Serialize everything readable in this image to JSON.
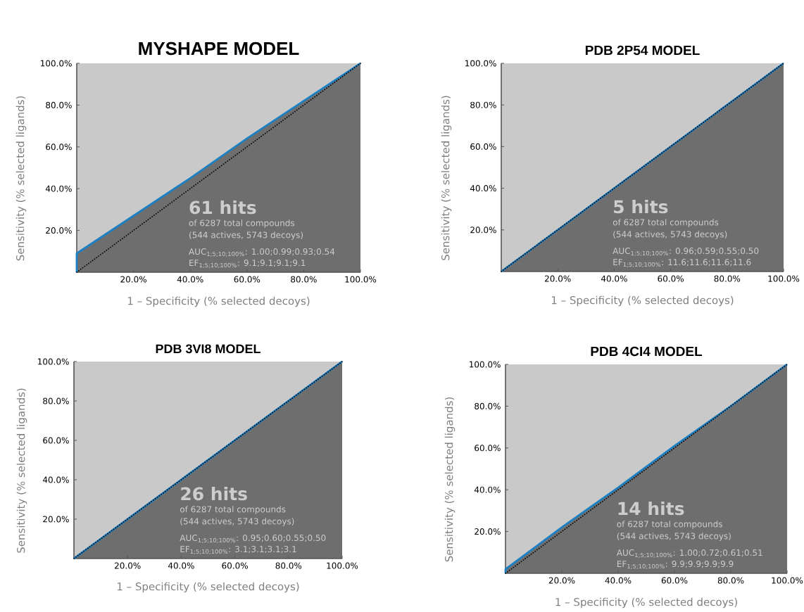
{
  "chart_data": [
    {
      "type": "line",
      "title": "MYSHAPE MODEL",
      "xlabel": "1 – Specificity (% selected decoys)",
      "ylabel": "Sensitivity (% selected ligands)",
      "xlim": [
        0,
        100
      ],
      "ylim": [
        0,
        100
      ],
      "xticks": [
        {
          "value": 20,
          "label": "20.0%"
        },
        {
          "value": 40,
          "label": "40.0%"
        },
        {
          "value": 60,
          "label": "60.0%"
        },
        {
          "value": 80,
          "label": "80.0%"
        },
        {
          "value": 100,
          "label": "100.0%"
        }
      ],
      "yticks": [
        {
          "value": 20,
          "label": "20.0%"
        },
        {
          "value": 40,
          "label": "40.0%"
        },
        {
          "value": 60,
          "label": "60.0%"
        },
        {
          "value": 80,
          "label": "80.0%"
        },
        {
          "value": 100,
          "label": "100.0%"
        }
      ],
      "series": [
        {
          "color": "#1b80c3",
          "x": [
            0,
            0,
            20,
            40,
            60,
            80,
            100
          ],
          "values": [
            0,
            9,
            27,
            45,
            64,
            82,
            100
          ]
        },
        {
          "color": "#000000",
          "line_style": "dotted",
          "x": [
            0,
            100
          ],
          "values": [
            0,
            100
          ]
        }
      ],
      "annotations": [
        "61 hits",
        "of 6287 total compounds",
        "(544 actives, 5743 decoys)",
        "AUC$_{1;5;10;100%}$: 1.00;0.99;0.93;0.54",
        "EF$_{1;5;10;100%}$: 9.1;9.1;9.1;9.1"
      ]
    },
    {
      "type": "line",
      "title": "PDB 2P54 MODEL",
      "xlabel": "1 – Specificity (% selected decoys)",
      "ylabel": "Sensitivity (% selected ligands)",
      "xlim": [
        0,
        100
      ],
      "ylim": [
        0,
        100
      ],
      "xticks": [
        {
          "value": 20,
          "label": "20.0%"
        },
        {
          "value": 40,
          "label": "40.0%"
        },
        {
          "value": 60,
          "label": "60.0%"
        },
        {
          "value": 80,
          "label": "80.0%"
        },
        {
          "value": 100,
          "label": "100.0%"
        }
      ],
      "yticks": [
        {
          "value": 20,
          "label": "20.0%"
        },
        {
          "value": 40,
          "label": "40.0%"
        },
        {
          "value": 60,
          "label": "60.0%"
        },
        {
          "value": 80,
          "label": "80.0%"
        },
        {
          "value": 100,
          "label": "100.0%"
        }
      ],
      "series": [
        {
          "color": "#1b80c3",
          "x": [
            0,
            20,
            40,
            60,
            80,
            100
          ],
          "values": [
            0,
            20,
            40,
            60,
            80,
            100
          ]
        },
        {
          "color": "#000000",
          "line_style": "dotted",
          "x": [
            0,
            100
          ],
          "values": [
            0,
            100
          ]
        }
      ],
      "annotations": [
        "5 hits",
        "of 6287 total compounds",
        "(544 actives, 5743 decoys)",
        "AUC$_{1;5;10;100%}$: 0.96;0.59;0.55;0.50",
        "EF$_{1;5;10;100%}$: 11.6;11.6;11.6;11.6"
      ]
    },
    {
      "type": "line",
      "title": "PDB 3VI8 MODEL",
      "xlabel": "1 – Specificity (% selected decoys)",
      "ylabel": "Sensitivity (% selected ligands)",
      "xlim": [
        0,
        100
      ],
      "ylim": [
        0,
        100
      ],
      "xticks": [
        {
          "value": 20,
          "label": "20.0%"
        },
        {
          "value": 40,
          "label": "40.0%"
        },
        {
          "value": 60,
          "label": "60.0%"
        },
        {
          "value": 80,
          "label": "80.0%"
        },
        {
          "value": 100,
          "label": "100.0%"
        }
      ],
      "yticks": [
        {
          "value": 20,
          "label": "20.0%"
        },
        {
          "value": 40,
          "label": "40.0%"
        },
        {
          "value": 60,
          "label": "60.0%"
        },
        {
          "value": 80,
          "label": "80.0%"
        },
        {
          "value": 100,
          "label": "100.0%"
        }
      ],
      "series": [
        {
          "color": "#1b80c3",
          "x": [
            0,
            20,
            40,
            60,
            80,
            100
          ],
          "values": [
            0,
            20,
            40,
            60,
            80,
            100
          ]
        },
        {
          "color": "#000000",
          "line_style": "dotted",
          "x": [
            0,
            100
          ],
          "values": [
            0,
            100
          ]
        }
      ],
      "annotations": [
        "26 hits",
        "of 6287 total compounds",
        "(544 actives, 5743 decoys)",
        "AUC$_{1;5;10;100%}$: 0.95;0.60;0.55;0.50",
        "EF$_{1;5;10;100%}$: 3.1;3.1;3.1;3.1"
      ]
    },
    {
      "type": "line",
      "title": "PDB 4CI4 MODEL",
      "xlabel": "1 – Specificity (% selected decoys)",
      "ylabel": "Sensitivity (% selected ligands)",
      "xlim": [
        0,
        100
      ],
      "ylim": [
        0,
        100
      ],
      "xticks": [
        {
          "value": 20,
          "label": "20.0%"
        },
        {
          "value": 40,
          "label": "40.0%"
        },
        {
          "value": 60,
          "label": "60.0%"
        },
        {
          "value": 80,
          "label": "80.0%"
        },
        {
          "value": 100,
          "label": "100.0%"
        }
      ],
      "yticks": [
        {
          "value": 20,
          "label": "20.0%"
        },
        {
          "value": 40,
          "label": "40.0%"
        },
        {
          "value": 60,
          "label": "60.0%"
        },
        {
          "value": 80,
          "label": "80.0%"
        },
        {
          "value": 100,
          "label": "100.0%"
        }
      ],
      "series": [
        {
          "color": "#1b80c3",
          "x": [
            0,
            0,
            20,
            40,
            60,
            80,
            100
          ],
          "values": [
            0,
            2,
            22,
            41,
            61,
            80,
            100
          ]
        },
        {
          "color": "#000000",
          "line_style": "dotted",
          "x": [
            0,
            100
          ],
          "values": [
            0,
            100
          ]
        }
      ],
      "annotations": [
        "14 hits",
        "of 6287 total compounds",
        "(544 actives, 5743 decoys)",
        "AUC$_{1;5;10;100%}$: 1.00;0.72;0.61;0.51",
        "EF$_{1;5;10;100%}$: 9.9;9.9;9.9;9.9"
      ]
    }
  ]
}
